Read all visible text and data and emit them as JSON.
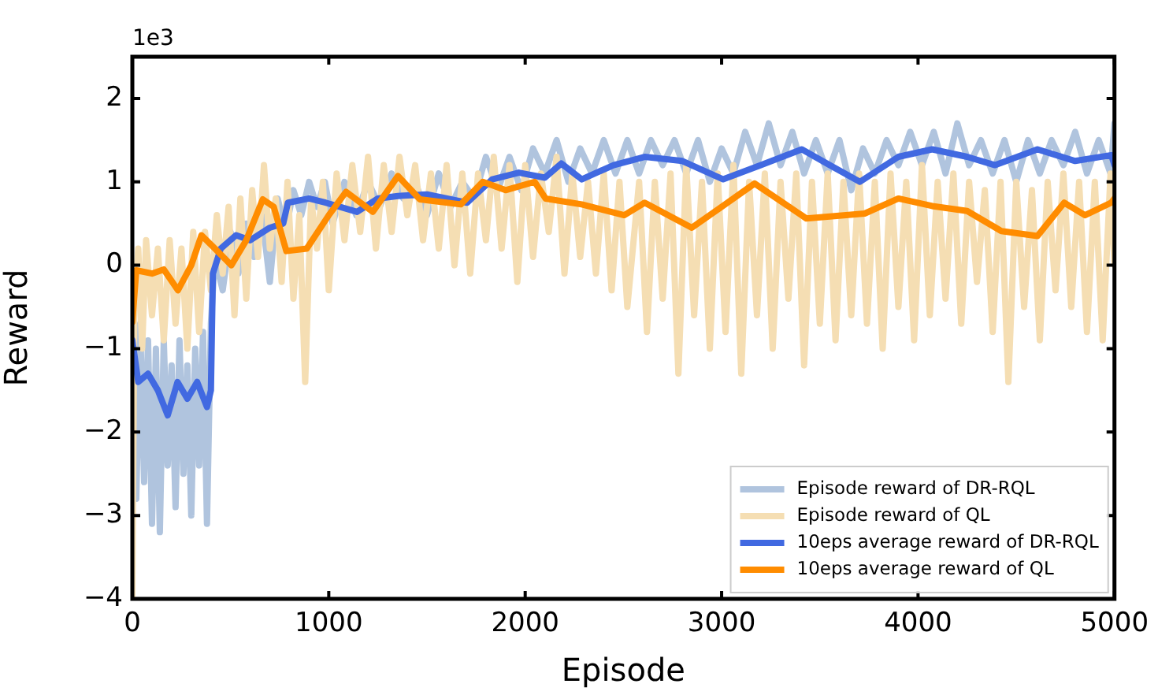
{
  "chart_data": {
    "type": "line",
    "xlabel": "Episode",
    "ylabel": "Reward",
    "annotations": [
      "1e3"
    ],
    "xlim": [
      0,
      5000
    ],
    "xticks": [
      0,
      1000,
      2000,
      3000,
      4000,
      5000
    ],
    "ylim": [
      -4,
      2.5
    ],
    "yticks": [
      -4,
      -3,
      -2,
      -1,
      0,
      1,
      2
    ],
    "grid": false,
    "legend": "bottom right",
    "marker": "none",
    "line_style": "solid",
    "series": [
      {
        "name": "Episode reward of DR-RQL",
        "color": "#b0c4de",
        "x": [
          0,
          20,
          40,
          60,
          80,
          100,
          120,
          140,
          160,
          180,
          200,
          220,
          240,
          260,
          280,
          300,
          320,
          340,
          360,
          380,
          400,
          420,
          460,
          500,
          540,
          580,
          620,
          660,
          700,
          740,
          780,
          820,
          860,
          900,
          940,
          980,
          1020,
          1080,
          1140,
          1200,
          1260,
          1320,
          1380,
          1440,
          1500,
          1560,
          1620,
          1680,
          1740,
          1800,
          1860,
          1920,
          1980,
          2040,
          2100,
          2160,
          2220,
          2280,
          2340,
          2400,
          2460,
          2520,
          2580,
          2640,
          2700,
          2760,
          2820,
          2880,
          2940,
          3000,
          3060,
          3120,
          3180,
          3240,
          3300,
          3360,
          3420,
          3480,
          3540,
          3600,
          3660,
          3720,
          3780,
          3840,
          3900,
          3960,
          4020,
          4080,
          4140,
          4200,
          4260,
          4320,
          4380,
          4440,
          4500,
          4560,
          4620,
          4680,
          4740,
          4800,
          4860,
          4920,
          4980,
          5000
        ],
        "values": [
          -0.6,
          -2.8,
          -0.7,
          -2.6,
          -0.9,
          -3.1,
          -1.0,
          -3.2,
          -0.9,
          -2.4,
          -1.2,
          -2.9,
          -0.9,
          -2.5,
          -1.2,
          -3.0,
          -1.0,
          -2.4,
          -0.8,
          -3.1,
          -0.7,
          0.1,
          -0.3,
          0.4,
          -0.1,
          0.5,
          0.1,
          0.6,
          -0.2,
          0.8,
          0.4,
          0.9,
          0.6,
          1.0,
          0.7,
          1.0,
          0.5,
          1.0,
          0.6,
          1.0,
          0.7,
          1.1,
          0.8,
          1.0,
          0.6,
          1.1,
          0.7,
          1.0,
          0.8,
          1.3,
          0.9,
          1.3,
          0.9,
          1.4,
          1.1,
          1.5,
          1.0,
          1.4,
          1.1,
          1.5,
          1.1,
          1.5,
          1.1,
          1.5,
          1.2,
          1.5,
          1.1,
          1.5,
          1.0,
          1.4,
          1.1,
          1.6,
          1.2,
          1.7,
          1.2,
          1.6,
          1.1,
          1.5,
          1.1,
          1.5,
          0.9,
          1.4,
          1.1,
          1.5,
          1.2,
          1.6,
          1.2,
          1.6,
          1.1,
          1.7,
          1.2,
          1.5,
          1.1,
          1.5,
          1.0,
          1.5,
          1.1,
          1.5,
          1.2,
          1.6,
          1.1,
          1.5,
          1.1,
          1.7
        ]
      },
      {
        "name": "Episode reward of QL",
        "color": "#f5deb3",
        "x": [
          0,
          10,
          30,
          50,
          70,
          100,
          130,
          160,
          190,
          220,
          250,
          280,
          310,
          340,
          370,
          400,
          430,
          460,
          490,
          520,
          550,
          580,
          610,
          640,
          670,
          700,
          730,
          760,
          790,
          820,
          850,
          880,
          910,
          940,
          970,
          1000,
          1040,
          1080,
          1120,
          1160,
          1200,
          1240,
          1280,
          1320,
          1360,
          1400,
          1440,
          1480,
          1520,
          1560,
          1600,
          1640,
          1680,
          1720,
          1760,
          1800,
          1840,
          1880,
          1920,
          1960,
          2000,
          2040,
          2080,
          2120,
          2160,
          2200,
          2240,
          2280,
          2320,
          2360,
          2400,
          2440,
          2480,
          2520,
          2580,
          2620,
          2660,
          2700,
          2740,
          2780,
          2820,
          2860,
          2900,
          2940,
          2980,
          3020,
          3060,
          3100,
          3140,
          3180,
          3220,
          3260,
          3300,
          3340,
          3380,
          3420,
          3460,
          3500,
          3540,
          3580,
          3620,
          3660,
          3700,
          3740,
          3780,
          3820,
          3860,
          3900,
          3940,
          3980,
          4020,
          4060,
          4100,
          4140,
          4180,
          4220,
          4260,
          4300,
          4340,
          4380,
          4420,
          4460,
          4500,
          4540,
          4580,
          4620,
          4660,
          4700,
          4740,
          4780,
          4820,
          4860,
          4900,
          4940,
          4980,
          5000
        ],
        "values": [
          -4.0,
          -0.5,
          0.2,
          -1.0,
          0.3,
          -0.6,
          0.2,
          -0.9,
          0.3,
          -0.7,
          0.2,
          -1.0,
          0.4,
          -0.8,
          0.4,
          -0.3,
          0.6,
          -0.1,
          0.7,
          -0.6,
          0.8,
          -0.4,
          0.9,
          0.1,
          1.2,
          0.2,
          0.8,
          -0.2,
          1.0,
          -0.4,
          0.6,
          -1.4,
          0.8,
          0.2,
          1.0,
          -0.3,
          1.1,
          0.3,
          1.2,
          0.4,
          1.3,
          0.2,
          1.2,
          0.4,
          1.3,
          0.6,
          1.2,
          0.3,
          1.1,
          0.2,
          1.2,
          0.0,
          1.1,
          -0.1,
          1.1,
          0.3,
          1.3,
          0.2,
          1.2,
          -0.2,
          1.2,
          0.1,
          1.1,
          0.4,
          1.3,
          -0.1,
          1.1,
          0.1,
          1.0,
          -0.1,
          1.1,
          -0.3,
          1.0,
          -0.5,
          1.0,
          -0.8,
          1.0,
          -0.4,
          1.1,
          -1.3,
          1.2,
          -0.6,
          1.0,
          -1.0,
          1.1,
          -0.8,
          1.2,
          -1.3,
          1.0,
          -0.6,
          1.1,
          -1.0,
          1.0,
          -0.4,
          1.1,
          -1.2,
          1.0,
          -0.7,
          1.1,
          -0.9,
          1.0,
          -0.6,
          1.1,
          -0.7,
          1.0,
          -1.0,
          1.1,
          -0.5,
          1.0,
          -0.9,
          1.2,
          -0.6,
          1.0,
          -0.4,
          1.1,
          -0.7,
          1.0,
          -0.2,
          0.9,
          -0.8,
          1.0,
          -1.4,
          1.0,
          -0.5,
          0.9,
          -0.9,
          1.0,
          -0.3,
          1.1,
          -0.5,
          1.0,
          -0.8,
          1.0,
          -0.9,
          1.1,
          0.0
        ]
      },
      {
        "name": "10eps average reward of DR-RQL",
        "color": "#4169e1",
        "x": [
          0,
          30,
          80,
          130,
          180,
          230,
          280,
          330,
          380,
          400,
          410,
          450,
          528,
          600,
          700,
          768,
          792,
          900,
          984,
          1144,
          1250,
          1352,
          1500,
          1704,
          1832,
          1968,
          2100,
          2184,
          2288,
          2450,
          2608,
          2800,
          3008,
          3200,
          3408,
          3550,
          3704,
          3900,
          4072,
          4250,
          4392,
          4608,
          4800,
          4984,
          5000
        ],
        "values": [
          -0.9,
          -1.4,
          -1.3,
          -1.5,
          -1.8,
          -1.4,
          -1.6,
          -1.4,
          -1.7,
          -1.5,
          -0.1,
          0.2,
          0.36,
          0.3,
          0.45,
          0.5,
          0.75,
          0.8,
          0.75,
          0.64,
          0.8,
          0.83,
          0.85,
          0.75,
          1.03,
          1.11,
          1.05,
          1.22,
          1.03,
          1.2,
          1.3,
          1.25,
          1.03,
          1.2,
          1.39,
          1.2,
          1.0,
          1.3,
          1.39,
          1.3,
          1.2,
          1.39,
          1.25,
          1.32,
          1.2
        ]
      },
      {
        "name": "10eps average reward of QL",
        "color": "#ff8c00",
        "x": [
          0,
          20,
          100,
          160,
          232,
          300,
          352,
          420,
          504,
          580,
          664,
          720,
          784,
          888,
          1000,
          1088,
          1224,
          1352,
          1464,
          1672,
          1784,
          1900,
          2048,
          2104,
          2288,
          2504,
          2608,
          2848,
          3000,
          3168,
          3432,
          3728,
          3900,
          4072,
          4250,
          4424,
          4608,
          4744,
          4850,
          4984,
          5000
        ],
        "values": [
          -0.68,
          -0.06,
          -0.1,
          -0.05,
          -0.3,
          0.0,
          0.36,
          0.2,
          0.0,
          0.3,
          0.79,
          0.7,
          0.17,
          0.2,
          0.6,
          0.88,
          0.64,
          1.07,
          0.79,
          0.73,
          1.0,
          0.9,
          1.0,
          0.8,
          0.73,
          0.6,
          0.75,
          0.45,
          0.7,
          0.98,
          0.56,
          0.62,
          0.8,
          0.71,
          0.65,
          0.41,
          0.35,
          0.75,
          0.6,
          0.75,
          0.8
        ]
      }
    ]
  }
}
